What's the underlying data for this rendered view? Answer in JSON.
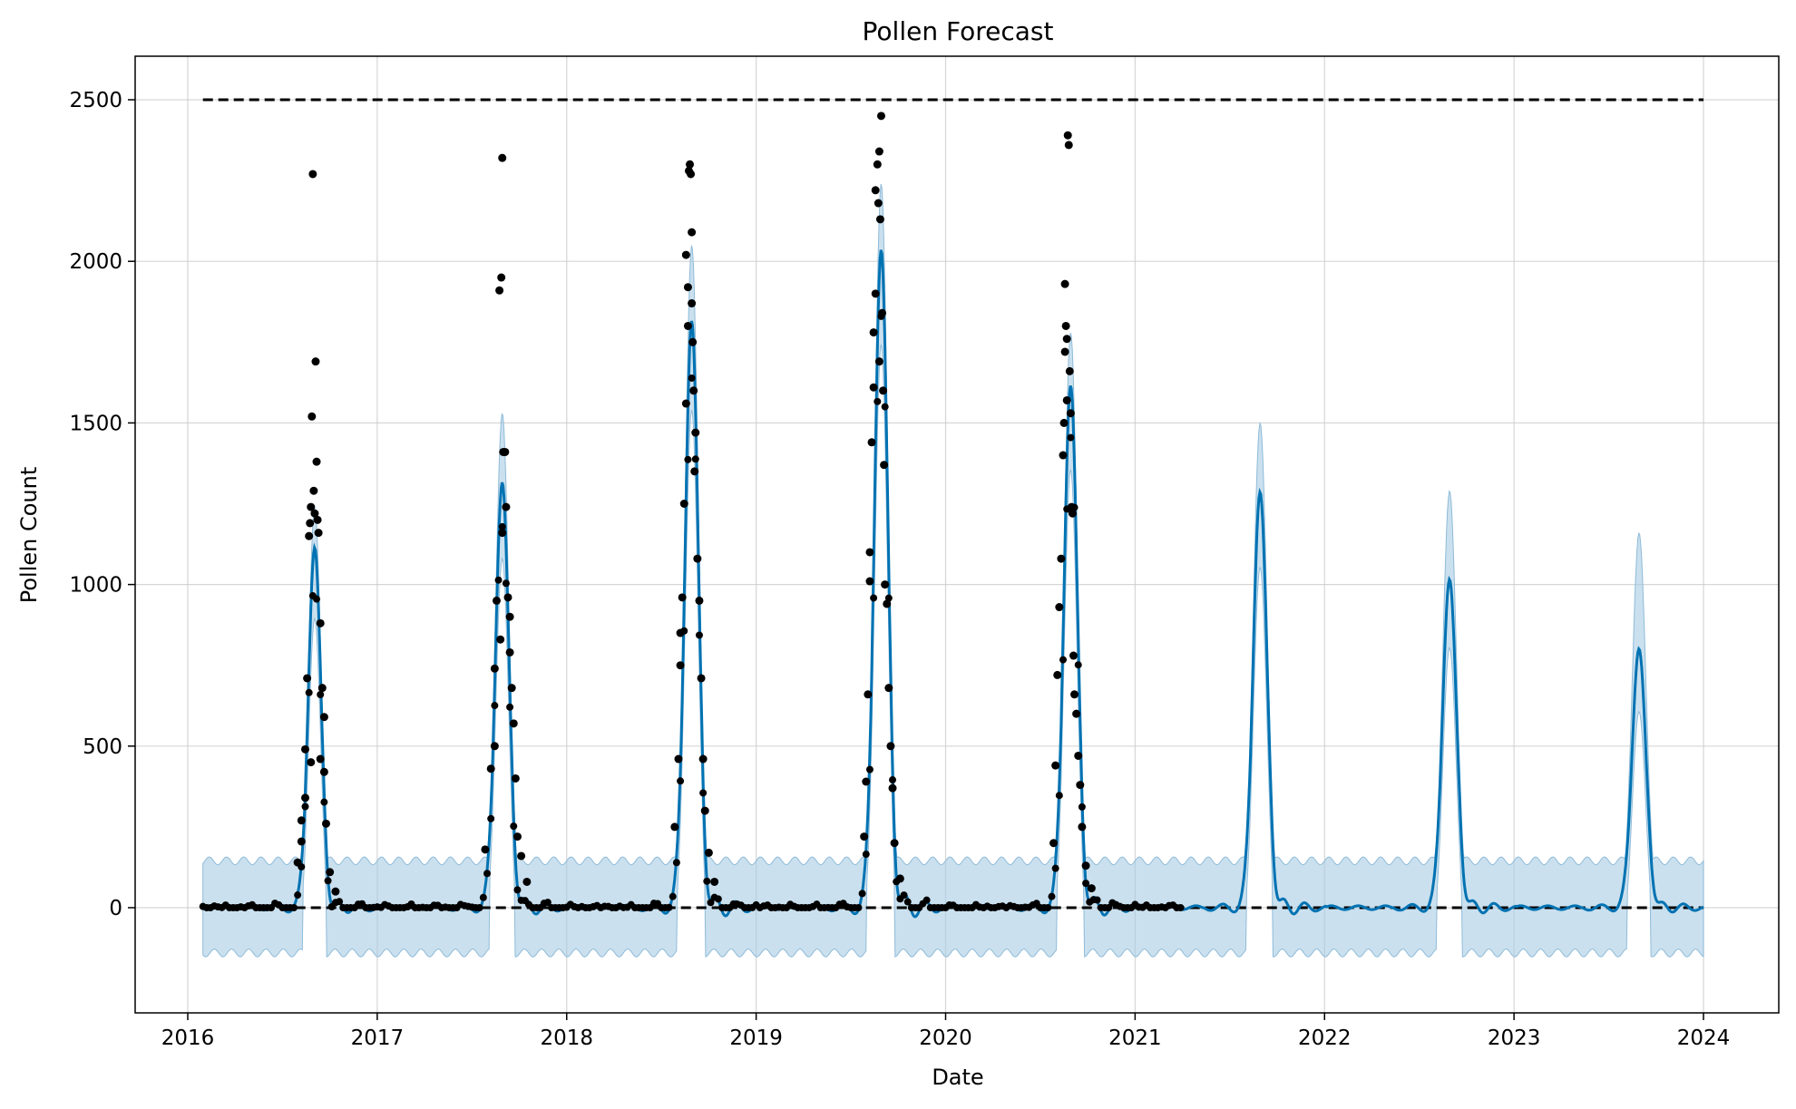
{
  "chart_data": {
    "type": "line",
    "title": "Pollen Forecast",
    "xlabel": "Date",
    "ylabel": "Pollen Count",
    "xlim": [
      2015.9,
      2024.4
    ],
    "ylim": [
      -330,
      2630
    ],
    "x_ticks": [
      "2016",
      "2017",
      "2018",
      "2019",
      "2020",
      "2021",
      "2022",
      "2023",
      "2024"
    ],
    "y_ticks": [
      "0",
      "500",
      "1000",
      "1500",
      "2000",
      "2500"
    ],
    "grid": true,
    "cap": {
      "value": 2500,
      "x_start": 2016.08,
      "x_end": 2024.0,
      "style": "dashed"
    },
    "floor": {
      "value": 0,
      "x_start": 2016.08,
      "x_end": 2024.0,
      "style": "dashed"
    },
    "colors": {
      "forecast": "#0072B2",
      "interval": "#A6CBE3",
      "observed": "#000000",
      "limits": "#000000"
    },
    "series": [
      {
        "role": "forecast",
        "peaks": [
          {
            "year": 2016,
            "date": 2016.67,
            "value": 1120,
            "width": 0.033,
            "upper": 1180
          },
          {
            "year": 2017,
            "date": 2017.66,
            "value": 1320,
            "width": 0.035,
            "upper": 1470
          },
          {
            "year": 2018,
            "date": 2018.66,
            "value": 1820,
            "width": 0.035,
            "upper": 1990
          },
          {
            "year": 2019,
            "date": 2019.66,
            "value": 2040,
            "width": 0.035,
            "upper": 2180
          },
          {
            "year": 2020,
            "date": 2020.66,
            "value": 1620,
            "width": 0.035,
            "upper": 1720
          },
          {
            "year": 2021,
            "date": 2021.66,
            "value": 1290,
            "width": 0.036,
            "upper": 1440
          },
          {
            "year": 2022,
            "date": 2022.66,
            "value": 1020,
            "width": 0.036,
            "upper": 1230
          },
          {
            "year": 2023,
            "date": 2023.66,
            "value": 805,
            "width": 0.036,
            "upper": 1100
          }
        ],
        "baseline": 0,
        "off_season_interval": [
          -140,
          145
        ]
      },
      {
        "role": "observed",
        "x_end": 2021.25,
        "in_season_points": [
          [
            2016.58,
            140
          ],
          [
            2016.6,
            205
          ],
          [
            2016.62,
            490
          ],
          [
            2016.63,
            710
          ],
          [
            2016.64,
            1150
          ],
          [
            2016.645,
            1190
          ],
          [
            2016.65,
            1240
          ],
          [
            2016.655,
            1520
          ],
          [
            2016.66,
            2270
          ],
          [
            2016.665,
            1290
          ],
          [
            2016.67,
            1220
          ],
          [
            2016.675,
            1690
          ],
          [
            2016.68,
            1380
          ],
          [
            2016.685,
            1200
          ],
          [
            2016.69,
            1160
          ],
          [
            2016.7,
            880
          ],
          [
            2016.71,
            680
          ],
          [
            2016.72,
            590
          ],
          [
            2016.6,
            270
          ],
          [
            2016.62,
            340
          ],
          [
            2016.65,
            450
          ],
          [
            2016.7,
            460
          ],
          [
            2016.72,
            420
          ],
          [
            2016.73,
            260
          ],
          [
            2016.75,
            110
          ],
          [
            2016.78,
            50
          ],
          [
            2017.57,
            180
          ],
          [
            2017.6,
            430
          ],
          [
            2017.62,
            740
          ],
          [
            2017.63,
            950
          ],
          [
            2017.645,
            1910
          ],
          [
            2017.655,
            1950
          ],
          [
            2017.66,
            2320
          ],
          [
            2017.665,
            1410
          ],
          [
            2017.675,
            1410
          ],
          [
            2017.68,
            1240
          ],
          [
            2017.69,
            960
          ],
          [
            2017.7,
            790
          ],
          [
            2017.71,
            680
          ],
          [
            2017.72,
            570
          ],
          [
            2017.73,
            400
          ],
          [
            2017.74,
            220
          ],
          [
            2017.62,
            500
          ],
          [
            2017.65,
            830
          ],
          [
            2017.66,
            1160
          ],
          [
            2017.7,
            900
          ],
          [
            2017.76,
            160
          ],
          [
            2017.79,
            80
          ],
          [
            2018.57,
            250
          ],
          [
            2018.59,
            460
          ],
          [
            2018.6,
            750
          ],
          [
            2018.61,
            960
          ],
          [
            2018.62,
            1250
          ],
          [
            2018.63,
            1560
          ],
          [
            2018.64,
            1800
          ],
          [
            2018.645,
            2280
          ],
          [
            2018.65,
            2300
          ],
          [
            2018.655,
            2270
          ],
          [
            2018.66,
            2090
          ],
          [
            2018.665,
            1750
          ],
          [
            2018.67,
            1600
          ],
          [
            2018.675,
            1350
          ],
          [
            2018.68,
            1470
          ],
          [
            2018.69,
            1080
          ],
          [
            2018.7,
            950
          ],
          [
            2018.71,
            710
          ],
          [
            2018.72,
            460
          ],
          [
            2018.73,
            300
          ],
          [
            2018.6,
            850
          ],
          [
            2018.63,
            2020
          ],
          [
            2018.64,
            1920
          ],
          [
            2018.66,
            1870
          ],
          [
            2018.75,
            170
          ],
          [
            2018.78,
            80
          ],
          [
            2019.57,
            220
          ],
          [
            2019.58,
            390
          ],
          [
            2019.59,
            660
          ],
          [
            2019.6,
            1010
          ],
          [
            2019.61,
            1440
          ],
          [
            2019.62,
            1780
          ],
          [
            2019.63,
            2220
          ],
          [
            2019.64,
            2300
          ],
          [
            2019.645,
            2180
          ],
          [
            2019.65,
            2340
          ],
          [
            2019.655,
            2130
          ],
          [
            2019.66,
            2450
          ],
          [
            2019.665,
            1840
          ],
          [
            2019.67,
            1600
          ],
          [
            2019.675,
            1370
          ],
          [
            2019.68,
            1000
          ],
          [
            2019.69,
            940
          ],
          [
            2019.7,
            680
          ],
          [
            2019.71,
            500
          ],
          [
            2019.72,
            370
          ],
          [
            2019.6,
            1100
          ],
          [
            2019.62,
            1610
          ],
          [
            2019.63,
            1900
          ],
          [
            2019.65,
            1690
          ],
          [
            2019.73,
            200
          ],
          [
            2019.76,
            90
          ],
          [
            2020.57,
            200
          ],
          [
            2020.58,
            440
          ],
          [
            2020.59,
            720
          ],
          [
            2020.6,
            930
          ],
          [
            2020.61,
            1080
          ],
          [
            2020.62,
            1400
          ],
          [
            2020.625,
            1500
          ],
          [
            2020.63,
            1930
          ],
          [
            2020.635,
            1800
          ],
          [
            2020.64,
            1760
          ],
          [
            2020.645,
            2390
          ],
          [
            2020.65,
            2360
          ],
          [
            2020.655,
            1660
          ],
          [
            2020.66,
            1530
          ],
          [
            2020.665,
            1240
          ],
          [
            2020.67,
            1220
          ],
          [
            2020.675,
            780
          ],
          [
            2020.68,
            660
          ],
          [
            2020.69,
            600
          ],
          [
            2020.7,
            470
          ],
          [
            2020.71,
            380
          ],
          [
            2020.72,
            250
          ],
          [
            2020.63,
            1720
          ],
          [
            2020.64,
            1570
          ],
          [
            2020.74,
            130
          ],
          [
            2020.77,
            60
          ]
        ]
      }
    ]
  }
}
